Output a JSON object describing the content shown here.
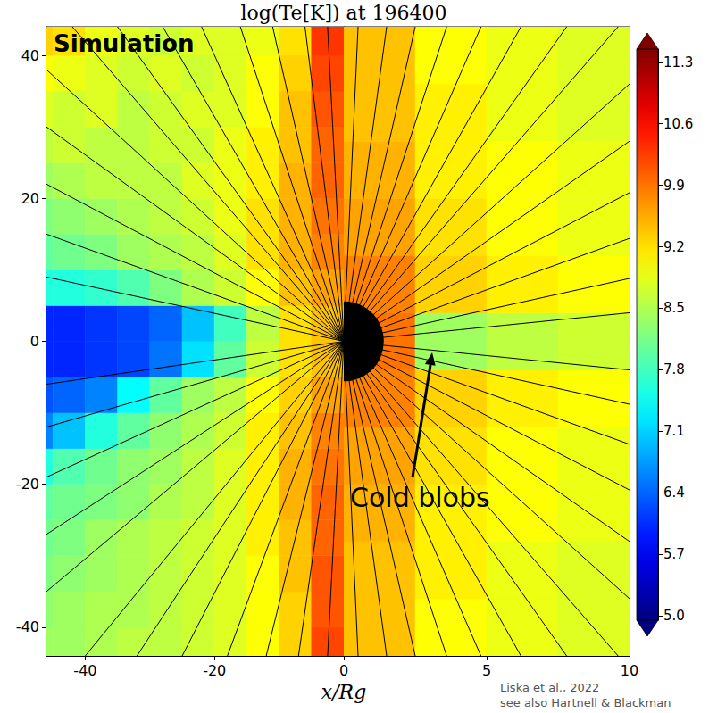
{
  "chart_data": [
    {
      "type": "heatmap",
      "title": "log(Te[K]) at 196400",
      "xlabel": "x/Rg",
      "annotations": [
        "Simulation"
      ],
      "source": [
        "Liska et al., 2022",
        "see also Hartnell & Blackman"
      ],
      "xlim": [
        -46,
        0
      ],
      "xticks": [
        -40,
        -20,
        0
      ],
      "ylim": [
        -44,
        44
      ],
      "yticks": [
        -40,
        -20,
        0,
        20,
        40
      ],
      "x_edges": [
        -50,
        -45,
        -40,
        -35,
        -30,
        -25,
        -20,
        -15,
        -10,
        -5,
        0
      ],
      "y_edges": [
        -45,
        -40,
        -35,
        -30,
        -25,
        -20,
        -15,
        -10,
        -5,
        0,
        5,
        10,
        15,
        20,
        25,
        30,
        35,
        40,
        45
      ],
      "cells": [
        [
          8.4,
          8.4,
          8.5,
          8.6,
          8.6,
          8.7,
          8.8,
          9.0,
          9.3,
          10.2
        ],
        [
          8.3,
          8.4,
          8.5,
          8.5,
          8.6,
          8.7,
          8.8,
          9.0,
          9.3,
          10.1
        ],
        [
          8.2,
          8.3,
          8.4,
          8.5,
          8.6,
          8.7,
          8.8,
          9.0,
          9.4,
          10.1
        ],
        [
          8.1,
          8.2,
          8.4,
          8.5,
          8.6,
          8.7,
          8.8,
          9.1,
          9.4,
          10.0
        ],
        [
          8.0,
          8.1,
          8.2,
          8.3,
          8.5,
          8.6,
          8.8,
          9.1,
          9.5,
          10.0
        ],
        [
          7.6,
          7.9,
          8.1,
          8.3,
          8.4,
          8.6,
          8.8,
          9.1,
          9.5,
          9.9
        ],
        [
          6.6,
          7.0,
          7.6,
          8.0,
          8.3,
          8.5,
          8.7,
          9.1,
          9.4,
          9.8
        ],
        [
          6.3,
          6.4,
          6.6,
          7.4,
          8.0,
          8.4,
          8.6,
          9.0,
          9.3,
          9.6
        ],
        [
          6.0,
          6.0,
          6.1,
          6.2,
          6.5,
          7.2,
          8.0,
          8.7,
          9.2,
          9.4
        ],
        [
          6.0,
          6.0,
          6.1,
          6.2,
          6.4,
          7.0,
          7.8,
          8.6,
          9.2,
          9.4
        ],
        [
          7.6,
          7.6,
          7.7,
          7.9,
          8.2,
          8.5,
          8.7,
          9.0,
          9.4,
          9.6
        ],
        [
          8.0,
          8.1,
          8.2,
          8.4,
          8.5,
          8.6,
          8.8,
          9.2,
          9.5,
          9.8
        ],
        [
          8.2,
          8.3,
          8.4,
          8.5,
          8.6,
          8.7,
          8.9,
          9.2,
          9.5,
          9.9
        ],
        [
          8.4,
          8.5,
          8.6,
          8.6,
          8.6,
          8.8,
          8.9,
          9.1,
          9.5,
          10.0
        ],
        [
          8.6,
          8.7,
          8.6,
          8.6,
          8.7,
          8.7,
          8.9,
          9.1,
          9.4,
          10.0
        ],
        [
          8.8,
          8.7,
          8.8,
          8.6,
          8.7,
          8.8,
          8.8,
          9.0,
          9.4,
          10.1
        ],
        [
          9.0,
          8.9,
          8.8,
          8.7,
          8.8,
          8.7,
          8.8,
          9.0,
          9.3,
          10.2
        ],
        [
          9.3,
          9.2,
          8.9,
          8.8,
          8.7,
          8.8,
          8.8,
          8.9,
          9.2,
          10.3
        ]
      ],
      "field_lines": [
        [
          [
            0,
            0
          ],
          [
            -42,
            44
          ]
        ],
        [
          [
            0,
            0
          ],
          [
            -35,
            44
          ]
        ],
        [
          [
            0,
            0
          ],
          [
            -28,
            44
          ]
        ],
        [
          [
            0,
            0
          ],
          [
            -22,
            44
          ]
        ],
        [
          [
            0,
            0
          ],
          [
            -16,
            44
          ]
        ],
        [
          [
            0,
            0
          ],
          [
            -11,
            44
          ]
        ],
        [
          [
            0,
            0
          ],
          [
            -6,
            44
          ]
        ],
        [
          [
            0,
            0
          ],
          [
            -2.5,
            44
          ]
        ],
        [
          [
            0,
            0
          ],
          [
            -46,
            38
          ]
        ],
        [
          [
            0,
            0
          ],
          [
            -46,
            30
          ]
        ],
        [
          [
            0,
            0
          ],
          [
            -46,
            22
          ]
        ],
        [
          [
            0,
            0
          ],
          [
            -46,
            15
          ]
        ],
        [
          [
            0,
            0
          ],
          [
            -46,
            9
          ]
        ],
        [
          [
            0,
            0
          ],
          [
            -46,
            -6
          ]
        ],
        [
          [
            0,
            0
          ],
          [
            -46,
            -12
          ]
        ],
        [
          [
            0,
            0
          ],
          [
            -46,
            -19
          ]
        ],
        [
          [
            0,
            0
          ],
          [
            -46,
            -27
          ]
        ],
        [
          [
            0,
            0
          ],
          [
            -46,
            -35
          ]
        ],
        [
          [
            0,
            0
          ],
          [
            -40,
            -44
          ]
        ],
        [
          [
            0,
            0
          ],
          [
            -32,
            -44
          ]
        ],
        [
          [
            0,
            0
          ],
          [
            -25,
            -44
          ]
        ],
        [
          [
            0,
            0
          ],
          [
            -18,
            -44
          ]
        ],
        [
          [
            0,
            0
          ],
          [
            -12,
            -44
          ]
        ],
        [
          [
            0,
            0
          ],
          [
            -7,
            -44
          ]
        ],
        [
          [
            0,
            0
          ],
          [
            -2.5,
            -44
          ]
        ]
      ]
    },
    {
      "type": "heatmap",
      "tick_labels": "x",
      "annotations": [
        "Cold blobs"
      ],
      "xlim": [
        0,
        10
      ],
      "xticks": [
        5,
        10
      ],
      "ylim": [
        -11,
        11
      ],
      "x_edges": [
        0,
        2.5,
        5,
        7.5,
        10
      ],
      "y_edges": [
        -11,
        -9,
        -7,
        -5,
        -3,
        -1,
        1,
        3,
        5,
        7,
        9,
        11
      ],
      "cells": [
        [
          9.4,
          9.0,
          8.9,
          8.8
        ],
        [
          9.4,
          9.1,
          8.9,
          8.8
        ],
        [
          9.5,
          9.1,
          9.0,
          8.9
        ],
        [
          9.6,
          9.2,
          9.0,
          8.9
        ],
        [
          9.8,
          9.3,
          9.1,
          9.0
        ],
        [
          9.9,
          8.4,
          8.6,
          8.7
        ],
        [
          9.8,
          9.3,
          9.1,
          9.0
        ],
        [
          9.6,
          9.2,
          9.0,
          8.9
        ],
        [
          9.5,
          9.1,
          9.0,
          8.9
        ],
        [
          9.4,
          9.1,
          8.9,
          8.8
        ],
        [
          9.4,
          9.0,
          8.9,
          8.8
        ]
      ],
      "field_lines": [
        [
          [
            0,
            0
          ],
          [
            0.5,
            11
          ]
        ],
        [
          [
            0,
            0
          ],
          [
            1.5,
            11
          ]
        ],
        [
          [
            0,
            0
          ],
          [
            2.5,
            11
          ]
        ],
        [
          [
            0,
            0
          ],
          [
            3.6,
            11
          ]
        ],
        [
          [
            0,
            0
          ],
          [
            4.8,
            11
          ]
        ],
        [
          [
            0,
            0
          ],
          [
            6.2,
            11
          ]
        ],
        [
          [
            0,
            0
          ],
          [
            7.8,
            11
          ]
        ],
        [
          [
            0,
            0
          ],
          [
            9.6,
            11
          ]
        ],
        [
          [
            0,
            0
          ],
          [
            10,
            9
          ]
        ],
        [
          [
            0,
            0
          ],
          [
            10,
            7
          ]
        ],
        [
          [
            0,
            0
          ],
          [
            10,
            5.2
          ]
        ],
        [
          [
            0,
            0
          ],
          [
            10,
            3.6
          ]
        ],
        [
          [
            0,
            0
          ],
          [
            10,
            2.2
          ]
        ],
        [
          [
            0,
            0
          ],
          [
            10,
            1
          ]
        ],
        [
          [
            0,
            0
          ],
          [
            10,
            -1
          ]
        ],
        [
          [
            0,
            0
          ],
          [
            10,
            -2.2
          ]
        ],
        [
          [
            0,
            0
          ],
          [
            10,
            -3.6
          ]
        ],
        [
          [
            0,
            0
          ],
          [
            10,
            -5.2
          ]
        ],
        [
          [
            0,
            0
          ],
          [
            10,
            -7
          ]
        ],
        [
          [
            0,
            0
          ],
          [
            10,
            -9
          ]
        ],
        [
          [
            0,
            0
          ],
          [
            0.5,
            -11
          ]
        ],
        [
          [
            0,
            0
          ],
          [
            1.5,
            -11
          ]
        ],
        [
          [
            0,
            0
          ],
          [
            2.5,
            -11
          ]
        ],
        [
          [
            0,
            0
          ],
          [
            3.6,
            -11
          ]
        ],
        [
          [
            0,
            0
          ],
          [
            4.8,
            -11
          ]
        ],
        [
          [
            0,
            0
          ],
          [
            6.2,
            -11
          ]
        ],
        [
          [
            0,
            0
          ],
          [
            7.8,
            -11
          ]
        ],
        [
          [
            0,
            0
          ],
          [
            9.6,
            -11
          ]
        ]
      ],
      "black_hole": {
        "center": [
          0,
          0
        ],
        "radius": 1.4
      },
      "colorbar": {
        "range": [
          4.95,
          11.45
        ],
        "ticks": [
          {
            "value": 5,
            "label": "5.0"
          },
          5.7,
          6.4,
          7.1,
          7.8,
          8.5,
          9.2,
          9.9,
          10.6,
          11.3
        ]
      }
    }
  ]
}
